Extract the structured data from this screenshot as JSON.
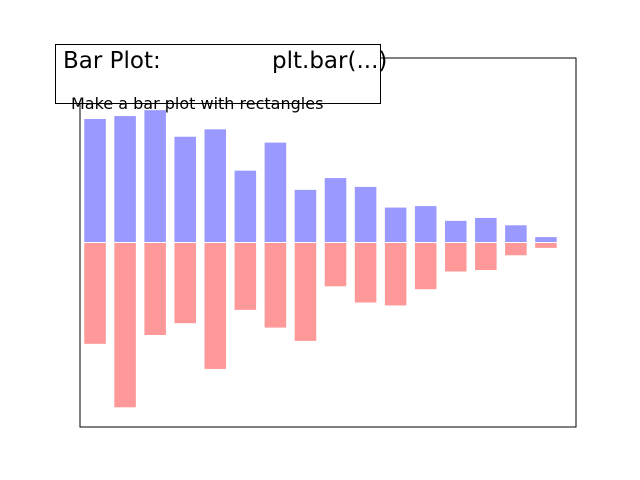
{
  "header": {
    "title": "Bar Plot:",
    "code": "plt.bar(...)",
    "subtitle": "Make a bar plot with rectangles"
  },
  "colors": {
    "upper": "#9999ff",
    "lower": "#ff9999",
    "frame": "#000000",
    "bar_edge": "#ffffff"
  },
  "chart_data": {
    "type": "bar",
    "x": [
      0,
      1,
      2,
      3,
      4,
      5,
      6,
      7,
      8,
      9,
      10,
      11,
      12,
      13,
      14,
      15
    ],
    "series": [
      {
        "values": [
          0.84,
          0.86,
          0.9,
          0.72,
          0.77,
          0.49,
          0.68,
          0.36,
          0.44,
          0.38,
          0.24,
          0.25,
          0.15,
          0.17,
          0.12,
          0.04
        ]
      },
      {
        "values": [
          -0.69,
          -1.12,
          -0.63,
          -0.55,
          -0.86,
          -0.46,
          -0.58,
          -0.67,
          -0.3,
          -0.41,
          -0.43,
          -0.32,
          -0.2,
          -0.19,
          -0.09,
          -0.04
        ]
      }
    ],
    "bar_width": 0.75,
    "xlim": [
      -0.5,
      16
    ],
    "ylim": [
      -1.25,
      1.25
    ],
    "xticks": [],
    "yticks": [],
    "grid": false
  }
}
